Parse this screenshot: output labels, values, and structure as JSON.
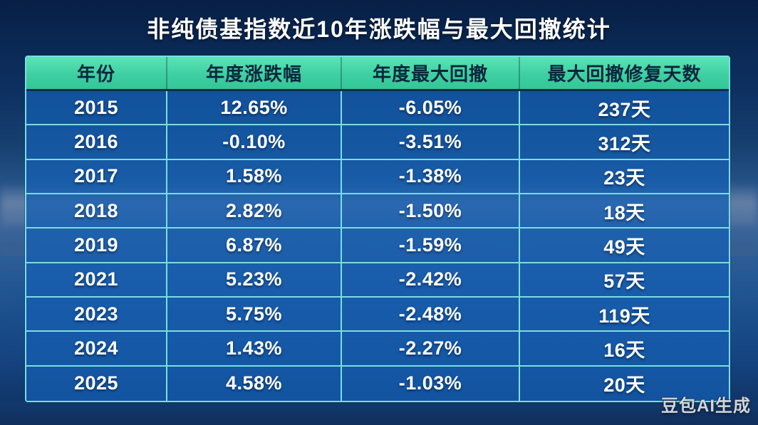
{
  "title": "非纯债基指数近10年涨跌幅与最大回撤统计",
  "watermark": "豆包AI生成",
  "chart_data": {
    "type": "table",
    "columns": [
      "年份",
      "年度涨跌幅",
      "年度最大回撤",
      "最大回撤修复天数"
    ],
    "rows": [
      [
        "2015",
        "12.65%",
        "-6.05%",
        "237天"
      ],
      [
        "2016",
        "-0.10%",
        "-3.51%",
        "312天"
      ],
      [
        "2017",
        "1.58%",
        "-1.38%",
        "23天"
      ],
      [
        "2018",
        "2.82%",
        "-1.50%",
        "18天"
      ],
      [
        "2019",
        "6.87%",
        "-1.59%",
        "49天"
      ],
      [
        "2021",
        "5.23%",
        "-2.42%",
        "57天"
      ],
      [
        "2023",
        "5.75%",
        "-2.48%",
        "119天"
      ],
      [
        "2024",
        "1.43%",
        "-2.27%",
        "16天"
      ],
      [
        "2025",
        "4.58%",
        "-1.03%",
        "20天"
      ]
    ],
    "colors": {
      "header_bg": "#3ed0a2",
      "header_text": "#07263c",
      "cell_bg": "rgba(21,95,180,0.72)",
      "grid_line": "#7adde6",
      "body_text": "#ffffff",
      "background_top": "#081f45",
      "background_bottom": "#102f5e"
    },
    "layout": {
      "grid": "on",
      "header_row": true
    }
  }
}
